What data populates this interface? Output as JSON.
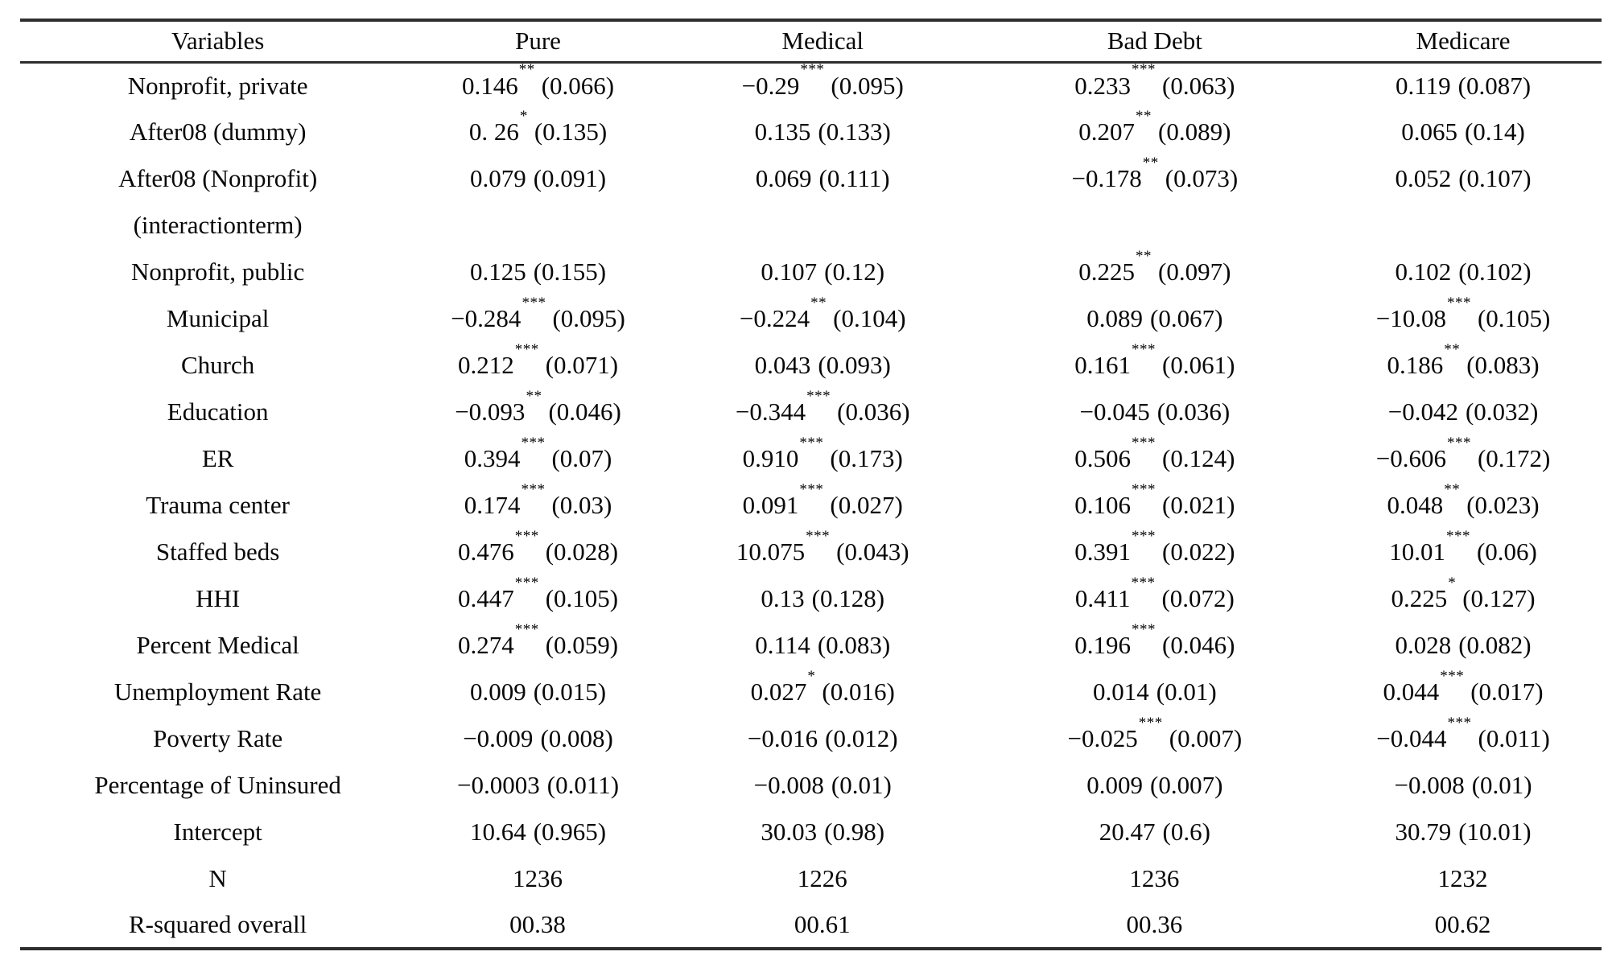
{
  "table": {
    "columns": [
      "Variables",
      "Pure",
      "Medical",
      "Bad Debt",
      "Medicare"
    ],
    "rows": [
      {
        "label": "Nonprofit, private",
        "cells": [
          {
            "coef": "0.146",
            "stars": "**",
            "se": "(0.066)"
          },
          {
            "coef": "−0.29",
            "stars": "***",
            "se": "(0.095)"
          },
          {
            "coef": "0.233",
            "stars": "***",
            "se": "(0.063)"
          },
          {
            "coef": "0.119",
            "stars": "",
            "se": "(0.087)"
          }
        ]
      },
      {
        "label": "After08 (dummy)",
        "cells": [
          {
            "coef": "0. 26",
            "stars": "*",
            "se": "(0.135)"
          },
          {
            "coef": "0.135",
            "stars": "",
            "se": "(0.133)"
          },
          {
            "coef": "0.207",
            "stars": "**",
            "se": "(0.089)"
          },
          {
            "coef": "0.065",
            "stars": "",
            "se": "(0.14)"
          }
        ]
      },
      {
        "label": "After08 (Nonprofit)",
        "cells": [
          {
            "coef": "0.079",
            "stars": "",
            "se": "(0.091)"
          },
          {
            "coef": "0.069",
            "stars": "",
            "se": "(0.111)"
          },
          {
            "coef": "−0.178",
            "stars": "**",
            "se": "(0.073)"
          },
          {
            "coef": "0.052",
            "stars": "",
            "se": "(0.107)"
          }
        ]
      },
      {
        "label": "(interactionterm)",
        "cells": [
          {
            "coef": "",
            "stars": "",
            "se": ""
          },
          {
            "coef": "",
            "stars": "",
            "se": ""
          },
          {
            "coef": "",
            "stars": "",
            "se": ""
          },
          {
            "coef": "",
            "stars": "",
            "se": ""
          }
        ]
      },
      {
        "label": "Nonprofit, public",
        "cells": [
          {
            "coef": "0.125",
            "stars": "",
            "se": "(0.155)"
          },
          {
            "coef": "0.107",
            "stars": "",
            "se": "(0.12)"
          },
          {
            "coef": "0.225",
            "stars": "**",
            "se": "(0.097)"
          },
          {
            "coef": "0.102",
            "stars": "",
            "se": "(0.102)"
          }
        ]
      },
      {
        "label": "Municipal",
        "cells": [
          {
            "coef": "−0.284",
            "stars": "***",
            "se": "(0.095)"
          },
          {
            "coef": "−0.224",
            "stars": "**",
            "se": "(0.104)"
          },
          {
            "coef": "0.089",
            "stars": "",
            "se": "(0.067)"
          },
          {
            "coef": "−10.08",
            "stars": "***",
            "se": "(0.105)"
          }
        ]
      },
      {
        "label": "Church",
        "cells": [
          {
            "coef": "0.212",
            "stars": "***",
            "se": "(0.071)"
          },
          {
            "coef": "0.043",
            "stars": "",
            "se": "(0.093)"
          },
          {
            "coef": "0.161",
            "stars": "***",
            "se": "(0.061)"
          },
          {
            "coef": "0.186",
            "stars": "**",
            "se": "(0.083)"
          }
        ]
      },
      {
        "label": "Education",
        "cells": [
          {
            "coef": "−0.093",
            "stars": "**",
            "se": "(0.046)"
          },
          {
            "coef": "−0.344",
            "stars": "***",
            "se": "(0.036)"
          },
          {
            "coef": "−0.045",
            "stars": "",
            "se": "(0.036)"
          },
          {
            "coef": "−0.042",
            "stars": "",
            "se": "(0.032)"
          }
        ]
      },
      {
        "label": "ER",
        "cells": [
          {
            "coef": "0.394",
            "stars": "***",
            "se": "(0.07)"
          },
          {
            "coef": "0.910",
            "stars": "***",
            "se": "(0.173)"
          },
          {
            "coef": "0.506",
            "stars": "***",
            "se": "(0.124)"
          },
          {
            "coef": "−0.606",
            "stars": "***",
            "se": "(0.172)"
          }
        ]
      },
      {
        "label": "Trauma center",
        "cells": [
          {
            "coef": "0.174",
            "stars": "***",
            "se": "(0.03)"
          },
          {
            "coef": "0.091",
            "stars": "***",
            "se": "(0.027)"
          },
          {
            "coef": "0.106",
            "stars": "***",
            "se": "(0.021)"
          },
          {
            "coef": "0.048",
            "stars": "**",
            "se": "(0.023)"
          }
        ]
      },
      {
        "label": "Staffed beds",
        "cells": [
          {
            "coef": "0.476",
            "stars": "***",
            "se": "(0.028)"
          },
          {
            "coef": "10.075",
            "stars": "***",
            "se": "(0.043)"
          },
          {
            "coef": "0.391",
            "stars": "***",
            "se": "(0.022)"
          },
          {
            "coef": "10.01",
            "stars": "***",
            "se": "(0.06)"
          }
        ]
      },
      {
        "label": "HHI",
        "cells": [
          {
            "coef": "0.447",
            "stars": "***",
            "se": "(0.105)"
          },
          {
            "coef": "0.13",
            "stars": "",
            "se": "(0.128)"
          },
          {
            "coef": "0.411",
            "stars": "***",
            "se": "(0.072)"
          },
          {
            "coef": "0.225",
            "stars": "*",
            "se": "(0.127)"
          }
        ]
      },
      {
        "label": "Percent Medical",
        "cells": [
          {
            "coef": "0.274",
            "stars": "***",
            "se": "(0.059)"
          },
          {
            "coef": "0.114",
            "stars": "",
            "se": "(0.083)"
          },
          {
            "coef": "0.196",
            "stars": "***",
            "se": "(0.046)"
          },
          {
            "coef": "0.028",
            "stars": "",
            "se": "(0.082)"
          }
        ]
      },
      {
        "label": "Unemployment Rate",
        "cells": [
          {
            "coef": "0.009",
            "stars": "",
            "se": "(0.015)"
          },
          {
            "coef": "0.027",
            "stars": "*",
            "se": "(0.016)"
          },
          {
            "coef": "0.014",
            "stars": "",
            "se": "(0.01)"
          },
          {
            "coef": "0.044",
            "stars": "***",
            "se": "(0.017)"
          }
        ]
      },
      {
        "label": "Poverty Rate",
        "cells": [
          {
            "coef": "−0.009",
            "stars": "",
            "se": "(0.008)"
          },
          {
            "coef": "−0.016",
            "stars": "",
            "se": "(0.012)"
          },
          {
            "coef": "−0.025",
            "stars": "***",
            "se": "(0.007)"
          },
          {
            "coef": "−0.044",
            "stars": "***",
            "se": "(0.011)"
          }
        ]
      },
      {
        "label": "Percentage of Uninsured",
        "cells": [
          {
            "coef": "−0.0003",
            "stars": "",
            "se": "(0.011)"
          },
          {
            "coef": "−0.008",
            "stars": "",
            "se": "(0.01)"
          },
          {
            "coef": "0.009",
            "stars": "",
            "se": "(0.007)"
          },
          {
            "coef": "−0.008",
            "stars": "",
            "se": "(0.01)"
          }
        ]
      },
      {
        "label": "Intercept",
        "cells": [
          {
            "coef": "10.64",
            "stars": "",
            "se": "(0.965)"
          },
          {
            "coef": "30.03",
            "stars": "",
            "se": "(0.98)"
          },
          {
            "coef": "20.47",
            "stars": "",
            "se": "(0.6)"
          },
          {
            "coef": "30.79",
            "stars": "",
            "se": "(10.01)"
          }
        ]
      },
      {
        "label": "N",
        "cells": [
          {
            "coef": "1236",
            "stars": "",
            "se": ""
          },
          {
            "coef": "1226",
            "stars": "",
            "se": ""
          },
          {
            "coef": "1236",
            "stars": "",
            "se": ""
          },
          {
            "coef": "1232",
            "stars": "",
            "se": ""
          }
        ]
      },
      {
        "label": "R-squared overall",
        "cells": [
          {
            "coef": "00.38",
            "stars": "",
            "se": ""
          },
          {
            "coef": "00.61",
            "stars": "",
            "se": ""
          },
          {
            "coef": "00.36",
            "stars": "",
            "se": ""
          },
          {
            "coef": "00.62",
            "stars": "",
            "se": ""
          }
        ]
      }
    ]
  }
}
